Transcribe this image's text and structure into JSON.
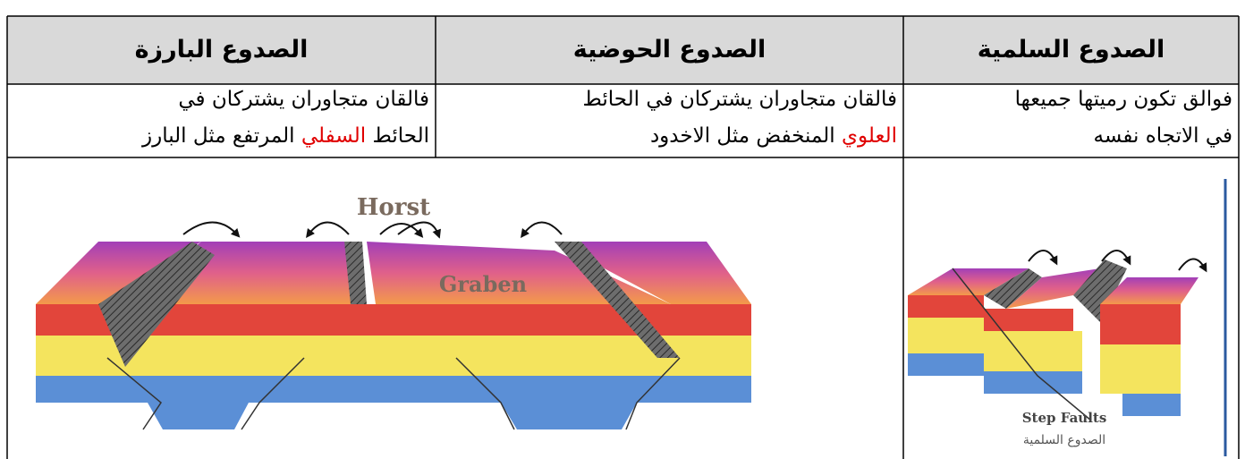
{
  "table": {
    "headers": [
      "الصدوع السلمية",
      "الصدوع الحوضية",
      "الصدوع البارزة"
    ],
    "descriptions": [
      {
        "line1": "فوالق تكون رميتها جميعها",
        "line2": "في الاتجاه نفسه"
      },
      {
        "line1": "فالقان متجاوران يشتركان في الحائط",
        "highlight": "العلوي",
        "rest": "المنخفض مثل الاخدود"
      },
      {
        "line1": "فالقان متجاوران يشتركان في",
        "lead": "الحائط",
        "highlight": "السفلي",
        "rest": "المرتفع مثل البارز"
      }
    ]
  },
  "figures": {
    "horst_graben": {
      "horst_label": "Horst",
      "graben_label": "Graben"
    },
    "step_faults": {
      "caption": "Step Faults",
      "caption_ar": "الصدوع السلمية"
    }
  }
}
